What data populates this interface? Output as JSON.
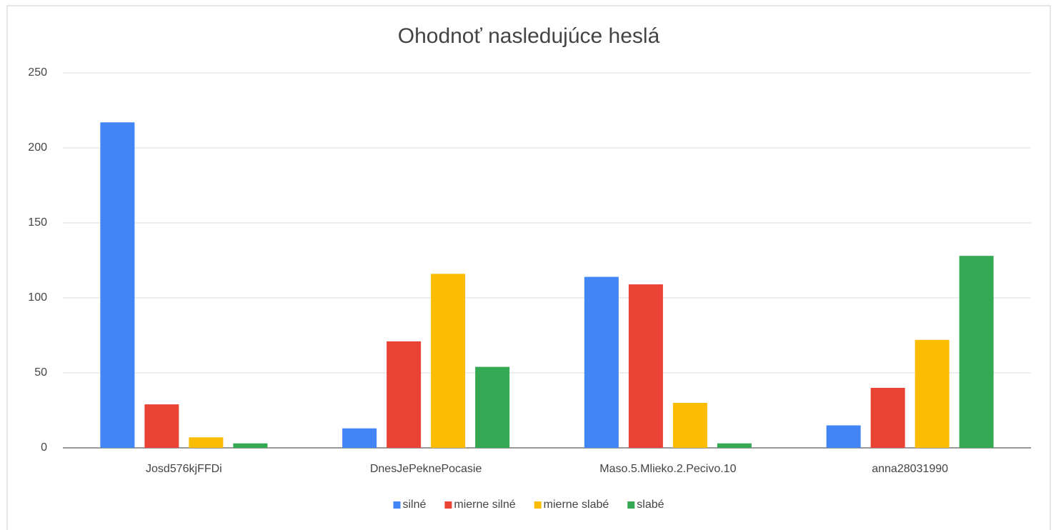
{
  "chart_data": {
    "type": "bar",
    "title": "Ohodnoť nasledujúce heslá",
    "categories": [
      "Josd576kjFFDi",
      "DnesJePeknePocasie",
      "Maso.5.Mlieko.2.Pecivo.10",
      "anna28031990"
    ],
    "series": [
      {
        "name": "silné",
        "color": "#4285f4",
        "values": [
          217,
          13,
          114,
          15
        ]
      },
      {
        "name": "mierne silné",
        "color": "#ea4335",
        "values": [
          29,
          71,
          109,
          40
        ]
      },
      {
        "name": "mierne slabé",
        "color": "#fbbc04",
        "values": [
          7,
          116,
          30,
          72
        ]
      },
      {
        "name": "slabé",
        "color": "#34a853",
        "values": [
          3,
          54,
          3,
          128
        ]
      }
    ],
    "ylim": [
      0,
      250
    ],
    "yticks": [
      0,
      50,
      100,
      150,
      200,
      250
    ],
    "grid": true,
    "legend": "bottom"
  }
}
